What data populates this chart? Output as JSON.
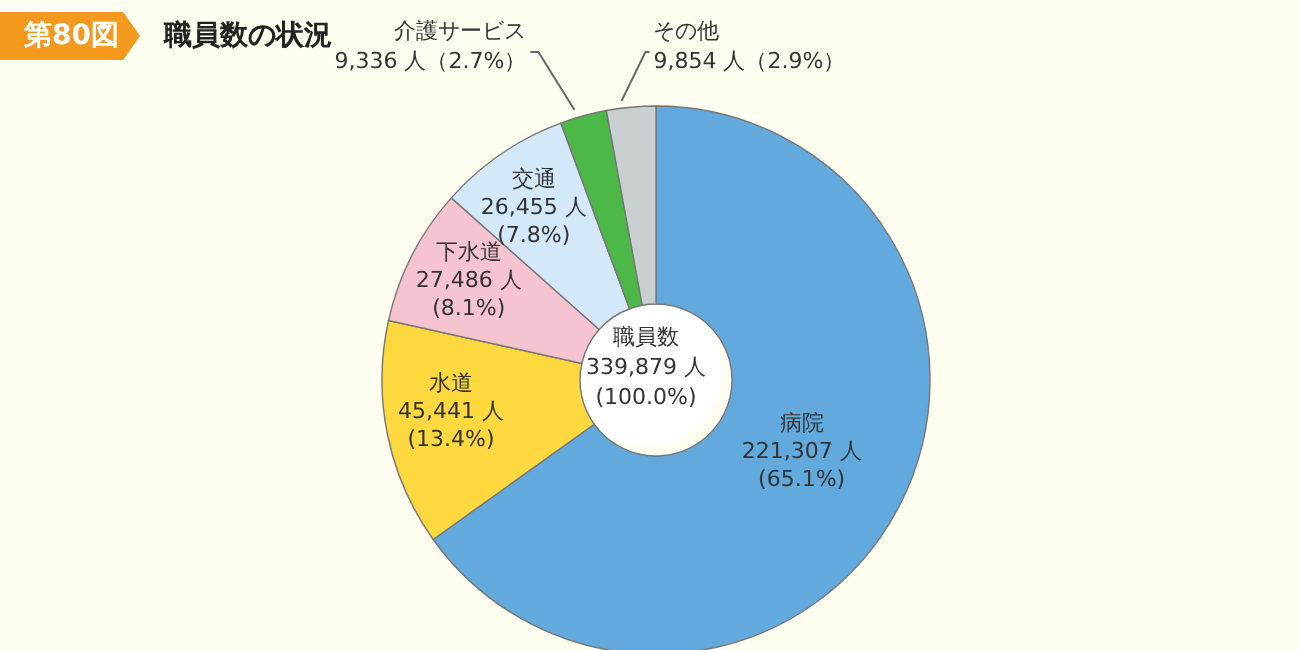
{
  "chart_data": {
    "type": "donut",
    "title": "職員数の状況",
    "categories": [
      "病院",
      "水道",
      "下水道",
      "交通",
      "介護サービス",
      "その他"
    ],
    "values": [
      221307,
      45441,
      27486,
      26455,
      9336,
      9854
    ],
    "colors": [
      "#62a9dd",
      "#fdd83e",
      "#f6c4d0",
      "#d3e8f8",
      "#4cb848",
      "#c9cfd0"
    ],
    "value_labels": [
      "221,307 人\n(65.1%)",
      "45,441 人\n(13.4%)",
      "27,486 人\n(8.1%)",
      "26,455 人\n(7.8%)",
      "9,336 人（2.7%）",
      "9,854 人（2.9%）"
    ],
    "annotations": [
      "第80図",
      "職員数\n339,879 人\n(100.0%)"
    ],
    "legend": false
  }
}
